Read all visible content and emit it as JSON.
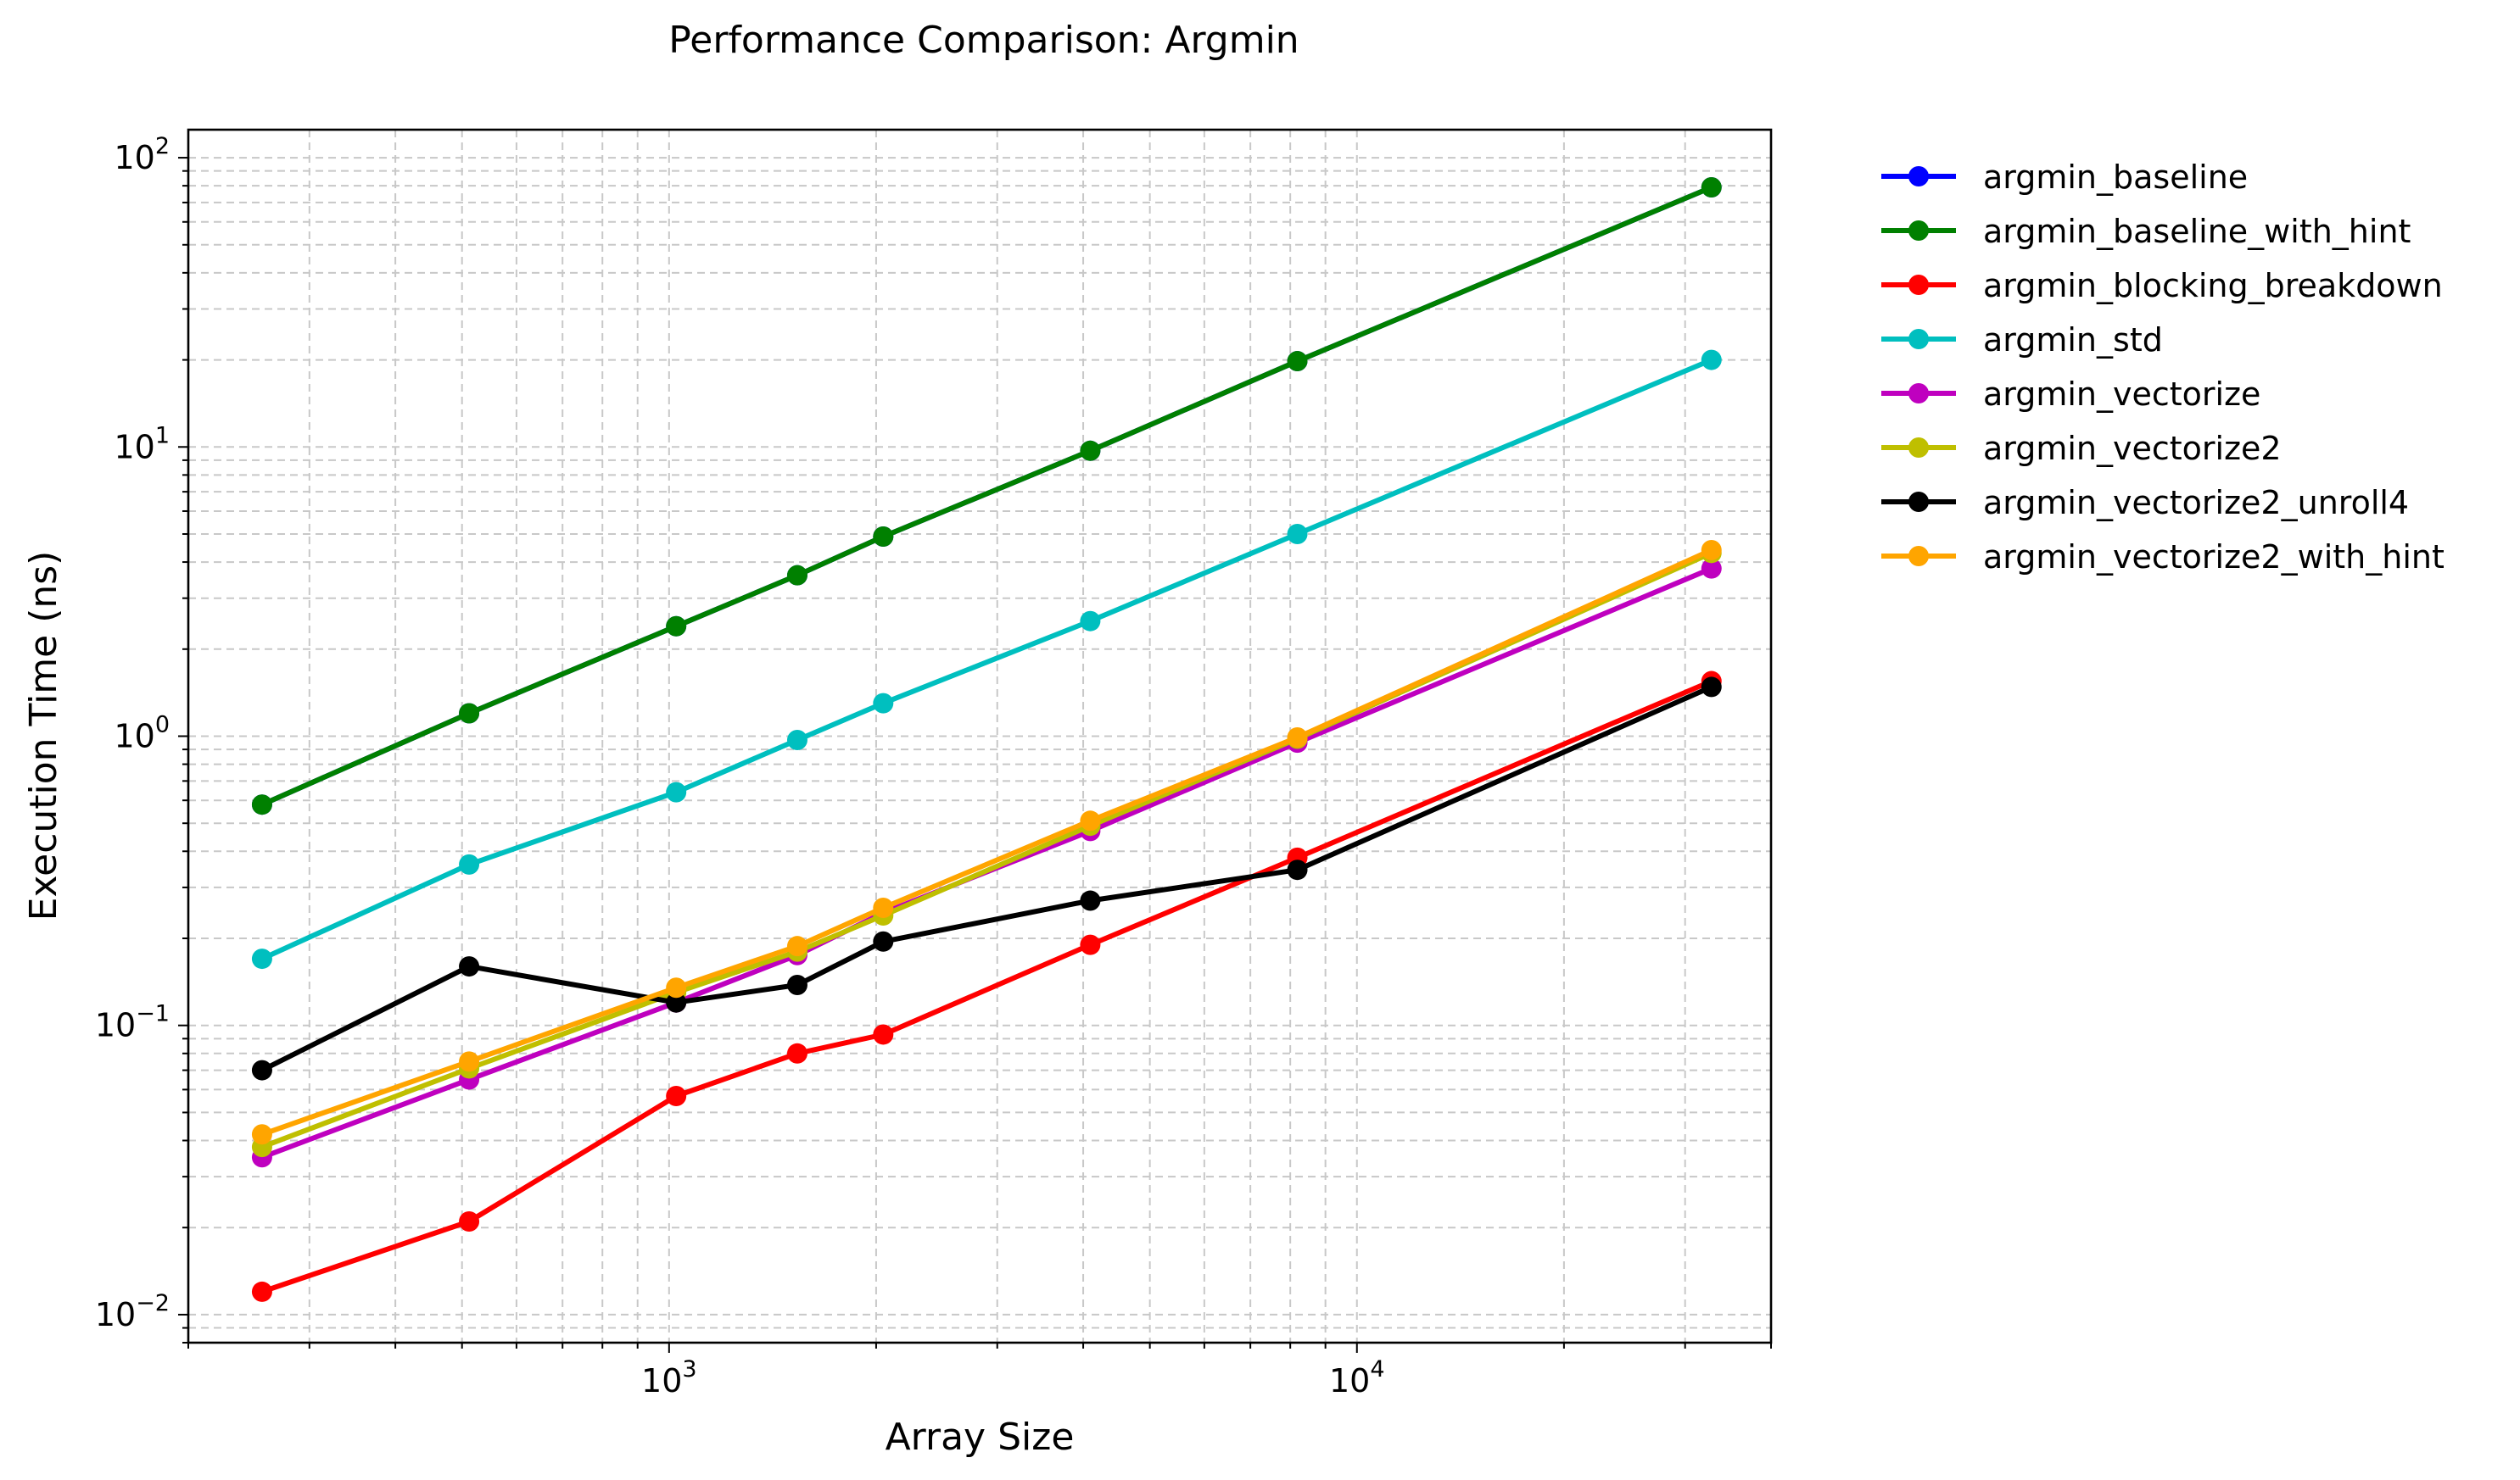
{
  "chart_data": {
    "type": "line",
    "title": "Performance Comparison: Argmin",
    "xlabel": "Array Size",
    "ylabel": "Execution Time (ns)",
    "x_scale": "log",
    "y_scale": "log",
    "xlim": [
      200,
      40000
    ],
    "ylim": [
      0.008,
      125
    ],
    "x_ticks": [
      {
        "value": 1000,
        "base": "10",
        "exp": "3"
      },
      {
        "value": 10000,
        "base": "10",
        "exp": "4"
      }
    ],
    "y_ticks": [
      {
        "value": 0.01,
        "base": "10",
        "exp": "−2"
      },
      {
        "value": 0.1,
        "base": "10",
        "exp": "−1"
      },
      {
        "value": 1,
        "base": "10",
        "exp": "0"
      },
      {
        "value": 10,
        "base": "10",
        "exp": "1"
      },
      {
        "value": 100,
        "base": "10",
        "exp": "2"
      }
    ],
    "grid": true,
    "legend_position": "outside-right",
    "x": [
      256,
      512,
      1024,
      1536,
      2048,
      4096,
      8192,
      32768
    ],
    "series": [
      {
        "name": "argmin_baseline",
        "color": "#0000ff",
        "values": [
          0.58,
          1.2,
          2.4,
          3.6,
          4.9,
          9.7,
          19.8,
          79.0
        ]
      },
      {
        "name": "argmin_baseline_with_hint",
        "color": "#008000",
        "values": [
          0.58,
          1.2,
          2.4,
          3.6,
          4.9,
          9.7,
          19.8,
          79.0
        ]
      },
      {
        "name": "argmin_blocking_breakdown",
        "color": "#ff0000",
        "values": [
          0.012,
          0.021,
          0.057,
          0.08,
          0.093,
          0.19,
          0.38,
          1.55
        ]
      },
      {
        "name": "argmin_std",
        "color": "#00bfbf",
        "values": [
          0.17,
          0.36,
          0.64,
          0.97,
          1.3,
          2.5,
          5.0,
          20.0
        ]
      },
      {
        "name": "argmin_vectorize",
        "color": "#bf00bf",
        "values": [
          0.035,
          0.065,
          0.12,
          0.175,
          0.245,
          0.47,
          0.95,
          3.8
        ]
      },
      {
        "name": "argmin_vectorize2",
        "color": "#bfbf00",
        "values": [
          0.038,
          0.071,
          0.13,
          0.18,
          0.24,
          0.49,
          0.98,
          4.3
        ]
      },
      {
        "name": "argmin_vectorize2_unroll4",
        "color": "#000000",
        "values": [
          0.07,
          0.16,
          0.12,
          0.138,
          0.195,
          0.27,
          0.345,
          1.48
        ]
      },
      {
        "name": "argmin_vectorize2_with_hint",
        "color": "#ffa500",
        "values": [
          0.042,
          0.075,
          0.135,
          0.188,
          0.255,
          0.51,
          0.99,
          4.4
        ]
      }
    ]
  }
}
